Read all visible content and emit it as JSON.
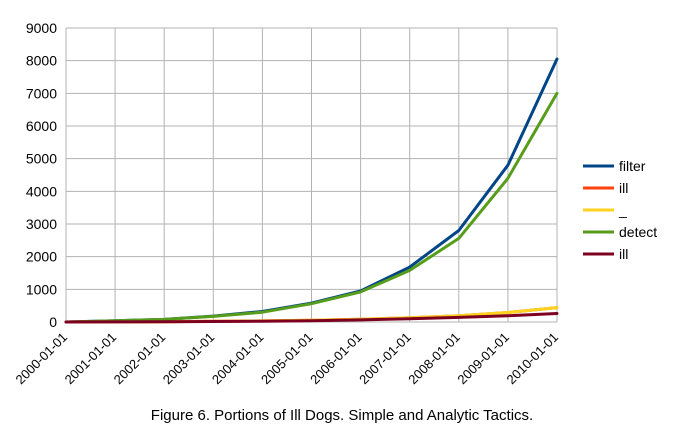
{
  "chart_data": {
    "type": "line",
    "x": [
      "2000-01-01",
      "2001-01-01",
      "2002-01-01",
      "2003-01-01",
      "2004-01-01",
      "2005-01-01",
      "2006-01-01",
      "2007-01-01",
      "2008-01-01",
      "2009-01-01",
      "2010-01-01"
    ],
    "ylim": [
      0,
      9000
    ],
    "yticks": [
      0,
      1000,
      2000,
      3000,
      4000,
      5000,
      6000,
      7000,
      8000,
      9000
    ],
    "grid": true,
    "legend_position": "right",
    "series": [
      {
        "name": "filter",
        "color": "#004586",
        "values": [
          0,
          40,
          80,
          180,
          320,
          580,
          950,
          1680,
          2800,
          4800,
          8050
        ]
      },
      {
        "name": "ill",
        "color": "#ff420e",
        "values": [
          0,
          5,
          10,
          20,
          35,
          55,
          85,
          130,
          190,
          290,
          440
        ]
      },
      {
        "name": "_",
        "color": "#ffd320",
        "values": [
          0,
          5,
          10,
          20,
          35,
          55,
          85,
          130,
          190,
          290,
          440
        ]
      },
      {
        "name": "detect",
        "color": "#579d1c",
        "values": [
          0,
          40,
          80,
          170,
          300,
          560,
          920,
          1580,
          2560,
          4400,
          7000
        ]
      },
      {
        "name": "ill",
        "color": "#7e0021",
        "values": [
          0,
          4,
          8,
          15,
          25,
          40,
          65,
          100,
          140,
          190,
          260
        ]
      }
    ],
    "caption": "Figure 6. Portions of Ill Dogs. Simple and Analytic Tactics."
  }
}
